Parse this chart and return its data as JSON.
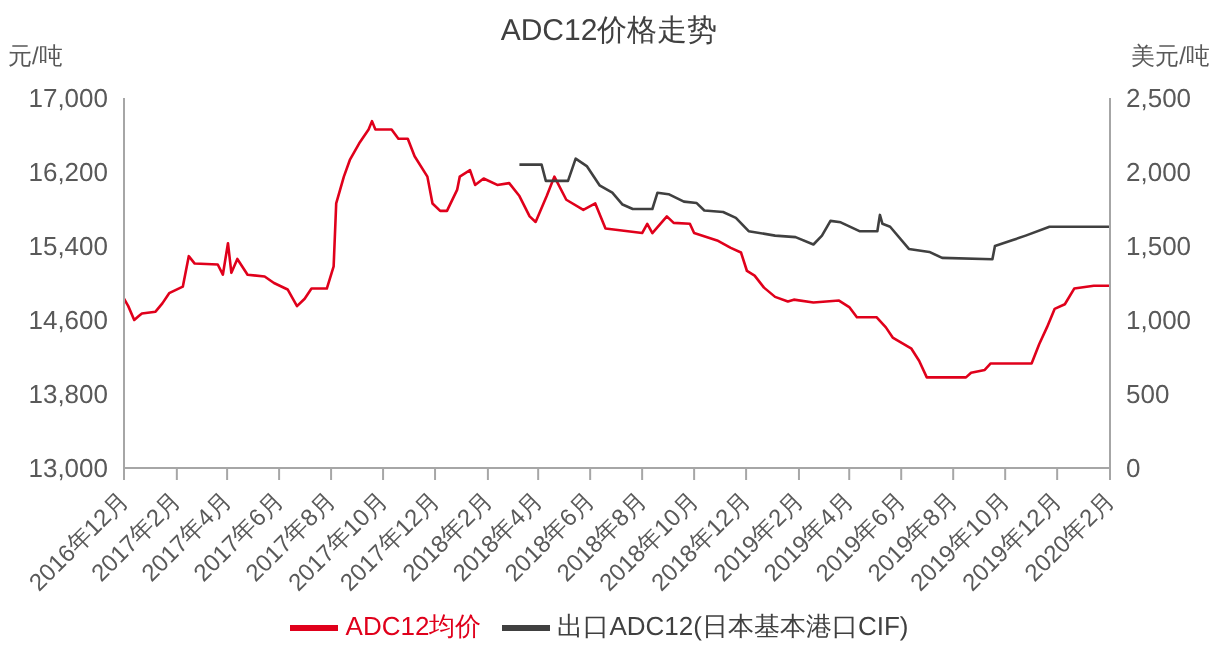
{
  "chart_data": {
    "type": "line",
    "title": "ADC12价格走势",
    "ylabel": "元/吨",
    "y2label": "美元/吨",
    "legend": "bottom",
    "marker": "none",
    "line_style": "solid",
    "xlim": [
      "2016-12-01",
      "2020-02-01"
    ],
    "xticks": [
      {
        "value": "2016-12-01",
        "label": "2016年12月"
      },
      {
        "value": "2017-02-01",
        "label": "2017年2月"
      },
      {
        "value": "2017-04-01",
        "label": "2017年4月"
      },
      {
        "value": "2017-06-01",
        "label": "2017年6月"
      },
      {
        "value": "2017-08-01",
        "label": "2017年8月"
      },
      {
        "value": "2017-10-01",
        "label": "2017年10月"
      },
      {
        "value": "2017-12-01",
        "label": "2017年12月"
      },
      {
        "value": "2018-02-01",
        "label": "2018年2月"
      },
      {
        "value": "2018-04-01",
        "label": "2018年4月"
      },
      {
        "value": "2018-06-01",
        "label": "2018年6月"
      },
      {
        "value": "2018-08-01",
        "label": "2018年8月"
      },
      {
        "value": "2018-10-01",
        "label": "2018年10月"
      },
      {
        "value": "2018-12-01",
        "label": "2018年12月"
      },
      {
        "value": "2019-02-01",
        "label": "2019年2月"
      },
      {
        "value": "2019-04-01",
        "label": "2019年4月"
      },
      {
        "value": "2019-06-01",
        "label": "2019年6月"
      },
      {
        "value": "2019-08-01",
        "label": "2019年8月"
      },
      {
        "value": "2019-10-01",
        "label": "2019年10月"
      },
      {
        "value": "2019-12-01",
        "label": "2019年12月"
      },
      {
        "value": "2020-02-01",
        "label": "2020年2月"
      }
    ],
    "ylim": [
      13000,
      17000
    ],
    "yticks": [
      {
        "value": 13000,
        "label": "13,000"
      },
      {
        "value": 13800,
        "label": "13,800"
      },
      {
        "value": 14600,
        "label": "14,600"
      },
      {
        "value": 15400,
        "label": "15,400"
      },
      {
        "value": 16200,
        "label": "16,200"
      },
      {
        "value": 17000,
        "label": "17,000"
      }
    ],
    "y2lim": [
      0,
      2500
    ],
    "y2ticks": [
      0,
      500,
      {
        "value": 1000,
        "label": "1,000"
      },
      {
        "value": 1500,
        "label": "1,500"
      },
      {
        "value": 2000,
        "label": "2,000"
      },
      {
        "value": 2500,
        "label": "2,500"
      }
    ],
    "series": [
      {
        "name": "ADC12均价",
        "color": "#e0001b",
        "x": [
          "2016-12-01",
          "2016-12-06",
          "2016-12-13",
          "2016-12-18",
          "2016-12-22",
          "2017-01-07",
          "2017-01-15",
          "2017-01-23",
          "2017-02-08",
          "2017-02-15",
          "2017-02-22",
          "2017-03-21",
          "2017-03-27",
          "2017-04-02",
          "2017-04-06",
          "2017-04-13",
          "2017-04-25",
          "2017-05-15",
          "2017-05-26",
          "2017-06-11",
          "2017-06-22",
          "2017-07-01",
          "2017-07-09",
          "2017-07-27",
          "2017-08-04",
          "2017-08-07",
          "2017-08-16",
          "2017-08-23",
          "2017-09-03",
          "2017-09-14",
          "2017-09-18",
          "2017-09-22",
          "2017-10-11",
          "2017-10-19",
          "2017-10-30",
          "2017-11-07",
          "2017-11-22",
          "2017-11-28",
          "2017-12-07",
          "2017-12-15",
          "2017-12-27",
          "2017-12-30",
          "2018-01-11",
          "2018-01-17",
          "2018-01-27",
          "2018-02-12",
          "2018-02-26",
          "2018-03-10",
          "2018-03-22",
          "2018-03-29",
          "2018-04-11",
          "2018-04-20",
          "2018-05-04",
          "2018-05-24",
          "2018-06-07",
          "2018-06-19",
          "2018-08-01",
          "2018-08-07",
          "2018-08-13",
          "2018-08-30",
          "2018-09-07",
          "2018-09-26",
          "2018-10-01",
          "2018-10-28",
          "2018-11-13",
          "2018-11-25",
          "2018-12-02",
          "2018-12-11",
          "2018-12-22",
          "2019-01-04",
          "2019-01-19",
          "2019-01-26",
          "2019-02-18",
          "2019-03-20",
          "2019-04-01",
          "2019-04-10",
          "2019-05-03",
          "2019-05-14",
          "2019-05-22",
          "2019-06-04",
          "2019-06-13",
          "2019-06-22",
          "2019-07-01",
          "2019-08-16",
          "2019-08-22",
          "2019-09-07",
          "2019-09-14",
          "2019-11-01",
          "2019-11-10",
          "2019-11-19",
          "2019-11-28",
          "2019-12-10",
          "2019-12-21",
          "2020-01-13",
          "2020-02-01"
        ],
        "values": [
          14830,
          14750,
          14600,
          14640,
          14670,
          14690,
          14780,
          14890,
          14960,
          15290,
          15210,
          15200,
          15090,
          15430,
          15110,
          15260,
          15090,
          15070,
          15000,
          14930,
          14750,
          14830,
          14940,
          14940,
          15180,
          15860,
          16150,
          16330,
          16510,
          16660,
          16750,
          16660,
          16660,
          16560,
          16560,
          16370,
          16150,
          15860,
          15780,
          15780,
          16010,
          16150,
          16220,
          16060,
          16130,
          16060,
          16080,
          15940,
          15720,
          15660,
          15940,
          16150,
          15900,
          15790,
          15860,
          15590,
          15540,
          15640,
          15540,
          15720,
          15650,
          15640,
          15540,
          15460,
          15380,
          15330,
          15130,
          15080,
          14950,
          14850,
          14800,
          14820,
          14790,
          14810,
          14740,
          14630,
          14630,
          14520,
          14410,
          14340,
          14290,
          14160,
          13980,
          13980,
          14030,
          14060,
          14130,
          14130,
          14340,
          14520,
          14720,
          14770,
          14940,
          14970,
          14970
        ]
      },
      {
        "name": "出口ADC12(日本基本港口CIF)",
        "color": "#404040",
        "axis": "y2",
        "x": [
          "2018-03-10",
          "2018-04-05",
          "2018-04-10",
          "2018-05-06",
          "2018-05-15",
          "2018-05-28",
          "2018-06-12",
          "2018-06-27",
          "2018-07-09",
          "2018-07-21",
          "2018-08-13",
          "2018-08-19",
          "2018-09-01",
          "2018-09-19",
          "2018-10-04",
          "2018-10-13",
          "2018-11-04",
          "2018-11-19",
          "2018-12-04",
          "2019-01-04",
          "2019-01-28",
          "2019-02-18",
          "2019-02-28",
          "2019-03-10",
          "2019-03-22",
          "2019-04-13",
          "2019-05-04",
          "2019-05-07",
          "2019-05-10",
          "2019-05-19",
          "2019-06-10",
          "2019-07-04",
          "2019-07-19",
          "2019-09-16",
          "2019-09-19",
          "2019-10-10",
          "2019-10-25",
          "2019-11-22",
          "2020-02-01"
        ],
        "values": [
          2050,
          2050,
          1940,
          1940,
          2090,
          2040,
          1910,
          1860,
          1780,
          1750,
          1750,
          1860,
          1850,
          1800,
          1790,
          1740,
          1730,
          1690,
          1600,
          1570,
          1560,
          1510,
          1570,
          1670,
          1660,
          1600,
          1600,
          1710,
          1650,
          1630,
          1480,
          1460,
          1420,
          1410,
          1500,
          1540,
          1570,
          1630,
          1630
        ]
      }
    ]
  }
}
